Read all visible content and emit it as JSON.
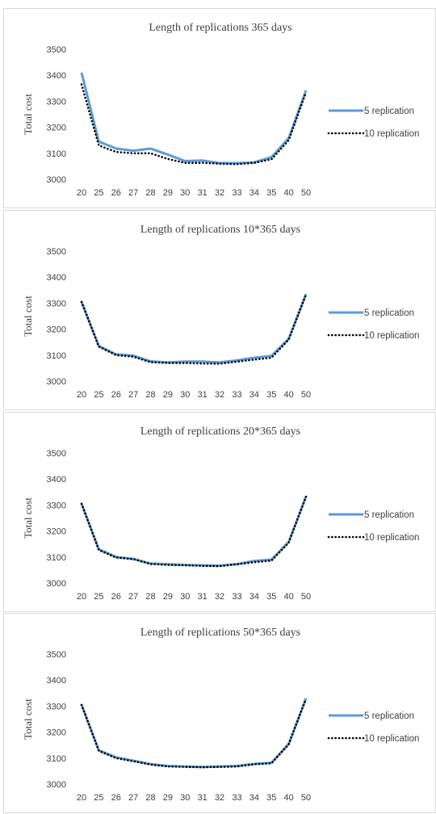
{
  "colors": {
    "series_5": "#5b9bd5",
    "series_10": "#000000",
    "text": "#404040",
    "border": "#d9d9d9"
  },
  "chart_data": [
    {
      "type": "line",
      "title": "Length of replications 365 days",
      "ylabel": "Total cost",
      "ylim": [
        3000,
        3500
      ],
      "yticks": [
        3000,
        3100,
        3200,
        3300,
        3400,
        3500
      ],
      "categories": [
        "20",
        "25",
        "26",
        "27",
        "28",
        "29",
        "30",
        "31",
        "32",
        "33",
        "34",
        "35",
        "40",
        "50"
      ],
      "legend_position": "right",
      "series": [
        {
          "name": "5 replication",
          "style": "solid",
          "values": [
            3410,
            3145,
            3118,
            3110,
            3118,
            3095,
            3070,
            3072,
            3062,
            3062,
            3065,
            3085,
            3158,
            3342
          ]
        },
        {
          "name": "10 replication",
          "style": "dotted",
          "values": [
            3365,
            3130,
            3105,
            3100,
            3100,
            3078,
            3063,
            3063,
            3060,
            3058,
            3063,
            3077,
            3150,
            3335
          ]
        }
      ]
    },
    {
      "type": "line",
      "title": "Length of replications 10*365 days",
      "ylabel": "Total cost",
      "ylim": [
        3000,
        3500
      ],
      "yticks": [
        3000,
        3100,
        3200,
        3300,
        3400,
        3500
      ],
      "categories": [
        "20",
        "25",
        "26",
        "27",
        "28",
        "29",
        "30",
        "31",
        "32",
        "33",
        "34",
        "35",
        "40",
        "50"
      ],
      "legend_position": "right",
      "series": [
        {
          "name": "5 replication",
          "style": "solid",
          "values": [
            3305,
            3135,
            3103,
            3098,
            3076,
            3072,
            3075,
            3075,
            3072,
            3080,
            3090,
            3097,
            3163,
            3335
          ]
        },
        {
          "name": "10 replication",
          "style": "dotted",
          "values": [
            3305,
            3133,
            3100,
            3094,
            3073,
            3070,
            3070,
            3068,
            3067,
            3075,
            3083,
            3090,
            3160,
            3333
          ]
        }
      ]
    },
    {
      "type": "line",
      "title": "Length of replications 20*365 days",
      "ylabel": "Total cost",
      "ylim": [
        3000,
        3500
      ],
      "yticks": [
        3000,
        3100,
        3200,
        3300,
        3400,
        3500
      ],
      "categories": [
        "20",
        "25",
        "26",
        "27",
        "28",
        "29",
        "30",
        "31",
        "32",
        "33",
        "34",
        "35",
        "40",
        "50"
      ],
      "legend_position": "right",
      "series": [
        {
          "name": "5 replication",
          "style": "solid",
          "values": [
            3305,
            3130,
            3100,
            3093,
            3075,
            3072,
            3070,
            3068,
            3067,
            3073,
            3085,
            3090,
            3158,
            3333
          ]
        },
        {
          "name": "10 replication",
          "style": "dotted",
          "values": [
            3305,
            3127,
            3098,
            3092,
            3073,
            3070,
            3068,
            3066,
            3065,
            3072,
            3080,
            3086,
            3156,
            3332
          ]
        }
      ]
    },
    {
      "type": "line",
      "title": "Length of replications 50*365 days",
      "ylabel": "Total cost",
      "ylim": [
        3000,
        3500
      ],
      "yticks": [
        3000,
        3100,
        3200,
        3300,
        3400,
        3500
      ],
      "categories": [
        "20",
        "25",
        "26",
        "27",
        "28",
        "29",
        "30",
        "31",
        "32",
        "33",
        "34",
        "35",
        "40",
        "50"
      ],
      "legend_position": "right",
      "series": [
        {
          "name": "5 replication",
          "style": "solid",
          "values": [
            3305,
            3130,
            3103,
            3090,
            3077,
            3070,
            3068,
            3066,
            3068,
            3070,
            3078,
            3082,
            3155,
            3330
          ]
        },
        {
          "name": "10 replication",
          "style": "dotted",
          "values": [
            3305,
            3128,
            3100,
            3088,
            3075,
            3068,
            3066,
            3065,
            3066,
            3068,
            3076,
            3080,
            3153,
            3328
          ]
        }
      ]
    }
  ]
}
